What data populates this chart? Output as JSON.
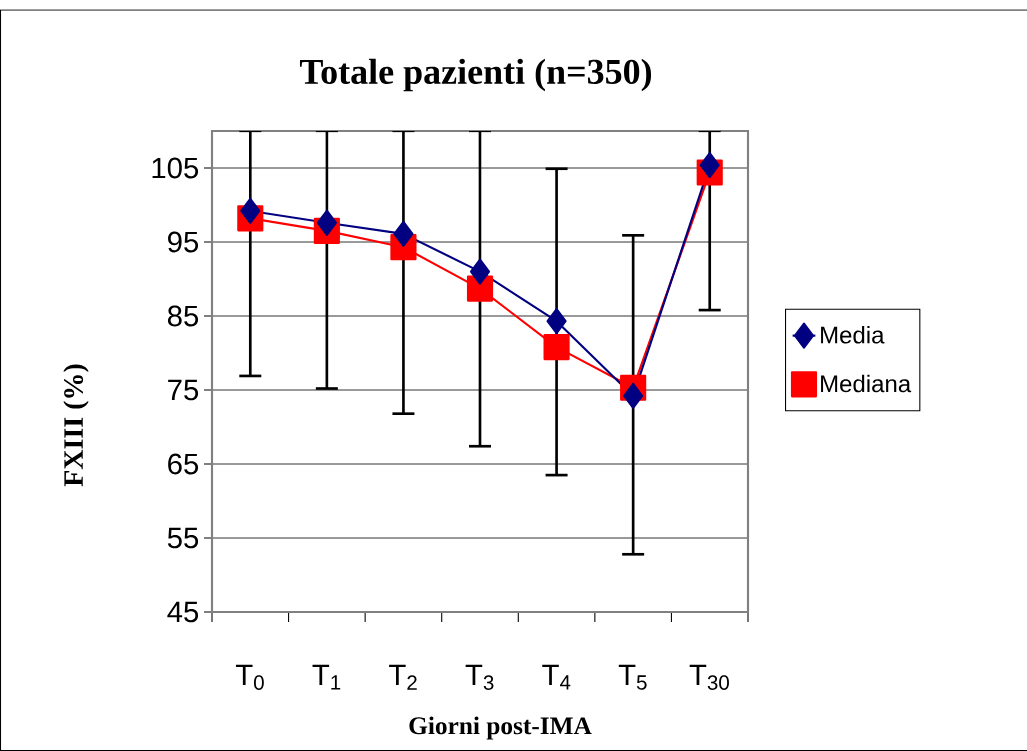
{
  "chart_data": {
    "type": "line",
    "title": "Totale pazienti (n=350)",
    "xlabel": "Giorni post-IMA",
    "ylabel": "FXIII (%)",
    "categories": [
      "T$_{0}$",
      "T$_{1}$",
      "T$_{2}$",
      "T$_{3}$",
      "T$_{4}$",
      "T$_{5}$",
      "T$_{30}$"
    ],
    "series": [
      {
        "name": "Media",
        "color": "#000080",
        "marker": "diamond",
        "values": [
          99.2,
          97.6,
          96.1,
          91.0,
          84.3,
          74.2,
          105.4
        ],
        "errors": [
          [
            76.9,
            110
          ],
          [
            75.2,
            110
          ],
          [
            71.8,
            110
          ],
          [
            67.4,
            110
          ],
          [
            63.5,
            104.9
          ],
          [
            52.8,
            95.9
          ],
          [
            85.8,
            110
          ]
        ]
      },
      {
        "name": "Mediana",
        "color": "#ff0000",
        "marker": "square",
        "values": [
          98.2,
          96.5,
          94.3,
          88.7,
          80.8,
          75.3,
          104.4
        ]
      }
    ],
    "ylim": [
      45,
      110
    ],
    "yticks": [
      45,
      55,
      65,
      75,
      85,
      95,
      105
    ],
    "grid": "y",
    "legend": "right"
  }
}
